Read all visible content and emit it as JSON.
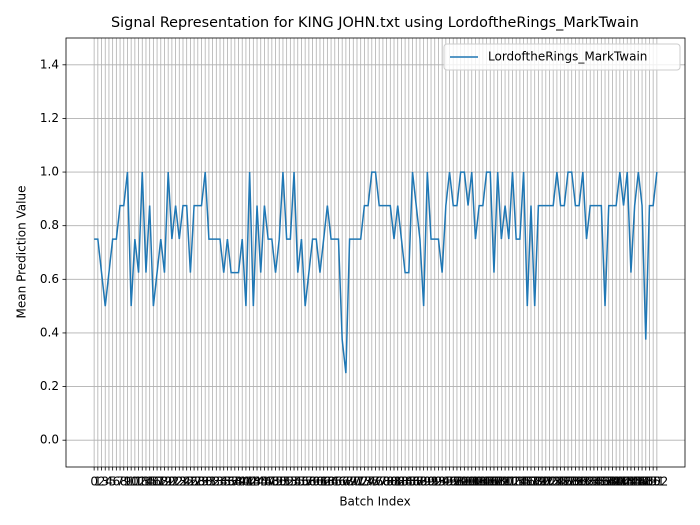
{
  "chart_data": {
    "type": "line",
    "title": "Signal Representation for KING JOHN.txt using LordoftheRings_MarkTwain",
    "x_label": "Batch Index",
    "y_label": "Mean Prediction Value",
    "x": [
      0,
      1,
      2,
      3,
      4,
      5,
      6,
      7,
      8,
      9,
      10,
      11,
      12,
      13,
      14,
      15,
      16,
      17,
      18,
      19,
      20,
      21,
      22,
      23,
      24,
      25,
      26,
      27,
      28,
      29,
      30,
      31,
      32,
      33,
      34,
      35,
      36,
      37,
      38,
      39,
      40,
      41,
      42,
      43,
      44,
      45,
      46,
      47,
      48,
      49,
      50,
      51,
      52,
      53,
      54,
      55,
      56,
      57,
      58,
      59,
      60,
      61,
      62,
      63,
      64,
      65,
      66,
      67,
      68,
      69,
      70,
      71,
      72,
      73,
      74,
      75,
      76,
      77,
      78,
      79,
      80,
      81,
      82,
      83,
      84,
      85,
      86,
      87,
      88,
      89,
      90,
      91,
      92,
      93,
      94,
      95,
      96,
      97,
      98,
      99,
      100,
      101,
      102,
      103,
      104,
      105,
      106,
      107,
      108,
      109,
      110,
      111,
      112,
      113,
      114,
      115,
      116,
      117,
      118,
      119,
      120,
      121,
      122,
      123,
      124,
      125,
      126,
      127,
      128,
      129,
      130,
      131,
      132,
      133,
      134,
      135,
      136,
      137,
      138,
      139,
      140,
      141,
      142,
      143,
      144,
      145,
      146,
      147,
      148,
      149,
      150,
      151,
      152
    ],
    "series": [
      {
        "name": "LordoftheRings_MarkTwain",
        "color": "#1f77b4",
        "values": [
          0.75,
          0.75,
          0.625,
          0.5,
          0.625,
          0.75,
          0.75,
          0.875,
          0.875,
          1.0,
          0.5,
          0.75,
          0.625,
          1.0,
          0.625,
          0.875,
          0.5,
          0.625,
          0.75,
          0.625,
          1.0,
          0.75,
          0.875,
          0.75,
          0.875,
          0.875,
          0.625,
          0.875,
          0.875,
          0.875,
          1.0,
          0.75,
          0.75,
          0.75,
          0.75,
          0.625,
          0.75,
          0.625,
          0.625,
          0.625,
          0.75,
          0.5,
          1.0,
          0.5,
          0.875,
          0.625,
          0.875,
          0.75,
          0.75,
          0.625,
          0.75,
          1.0,
          0.75,
          0.75,
          1.0,
          0.625,
          0.75,
          0.5,
          0.625,
          0.75,
          0.75,
          0.625,
          0.75,
          0.875,
          0.75,
          0.75,
          0.75,
          0.375,
          0.25,
          0.75,
          0.75,
          0.75,
          0.75,
          0.875,
          0.875,
          1.0,
          1.0,
          0.875,
          0.875,
          0.875,
          0.875,
          0.75,
          0.875,
          0.75,
          0.625,
          0.625,
          1.0,
          0.875,
          0.75,
          0.5,
          1.0,
          0.75,
          0.75,
          0.75,
          0.625,
          0.875,
          1.0,
          0.875,
          0.875,
          1.0,
          1.0,
          0.875,
          1.0,
          0.75,
          0.875,
          0.875,
          1.0,
          1.0,
          0.625,
          1.0,
          0.75,
          0.875,
          0.75,
          1.0,
          0.75,
          0.75,
          1.0,
          0.5,
          0.875,
          0.5,
          0.875,
          0.875,
          0.875,
          0.875,
          0.875,
          1.0,
          0.875,
          0.875,
          1.0,
          1.0,
          0.875,
          0.875,
          1.0,
          0.75,
          0.875,
          0.875,
          0.875,
          0.875,
          0.5,
          0.875,
          0.875,
          0.875,
          1.0,
          0.875,
          1.0,
          0.625,
          0.875,
          1.0,
          0.875,
          0.375,
          0.875,
          0.875,
          1.0
        ]
      }
    ],
    "xlim": [
      -7.6,
      159.6
    ],
    "xticks": [
      0,
      1,
      2,
      3,
      4,
      5,
      6,
      7,
      8,
      9,
      10,
      11,
      12,
      13,
      14,
      15,
      16,
      17,
      18,
      19,
      20,
      21,
      22,
      23,
      24,
      25,
      26,
      27,
      28,
      29,
      30,
      31,
      32,
      33,
      34,
      35,
      36,
      37,
      38,
      39,
      40,
      41,
      42,
      43,
      44,
      45,
      46,
      47,
      48,
      49,
      50,
      51,
      52,
      53,
      54,
      55,
      56,
      57,
      58,
      59,
      60,
      61,
      62,
      63,
      64,
      65,
      66,
      67,
      68,
      69,
      70,
      71,
      72,
      73,
      74,
      75,
      76,
      77,
      78,
      79,
      80,
      81,
      82,
      83,
      84,
      85,
      86,
      87,
      88,
      89,
      90,
      91,
      92,
      93,
      94,
      95,
      96,
      97,
      98,
      99,
      100,
      101,
      102,
      103,
      104,
      105,
      106,
      107,
      108,
      109,
      110,
      111,
      112,
      113,
      114,
      115,
      116,
      117,
      118,
      119,
      120,
      121,
      122,
      123,
      124,
      125,
      126,
      127,
      128,
      129,
      130,
      131,
      132,
      133,
      134,
      135,
      136,
      137,
      138,
      139,
      140,
      141,
      142,
      143,
      144,
      145,
      146,
      147,
      148,
      149,
      150,
      151,
      152
    ],
    "ylim": [
      -0.1,
      1.5
    ],
    "yticks": [
      {
        "value": 0,
        "label": "0.0"
      },
      {
        "value": 0.2,
        "label": "0.2"
      },
      {
        "value": 0.4,
        "label": "0.4"
      },
      {
        "value": 0.6,
        "label": "0.6"
      },
      {
        "value": 0.8,
        "label": "0.8"
      },
      {
        "value": 1,
        "label": "1.0"
      },
      {
        "value": 1.2,
        "label": "1.2"
      },
      {
        "value": 1.4,
        "label": "1.4"
      }
    ],
    "grid": true,
    "legend": "upper right"
  }
}
